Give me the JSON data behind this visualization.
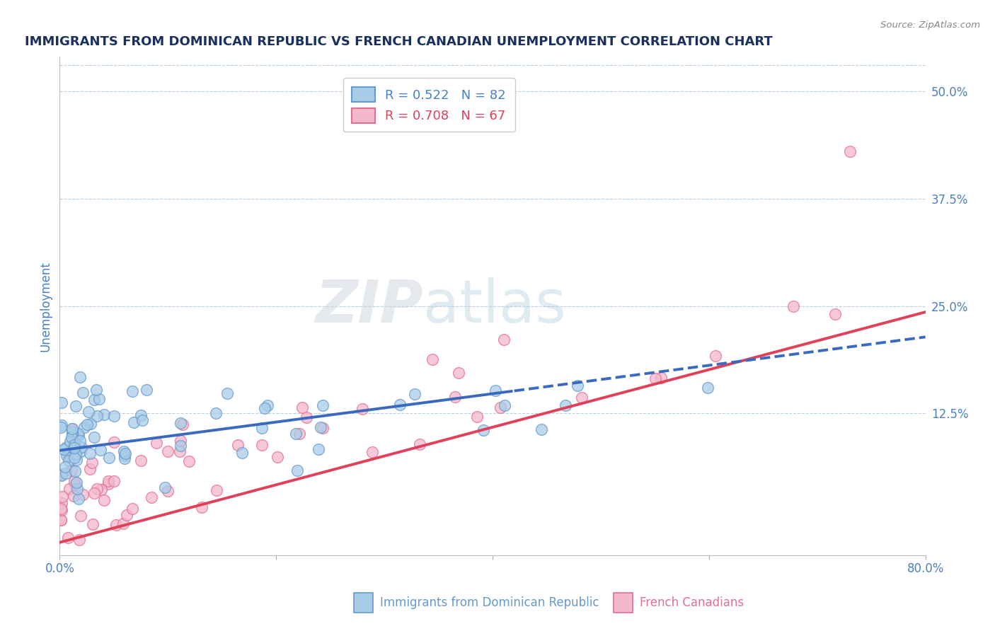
{
  "title": "IMMIGRANTS FROM DOMINICAN REPUBLIC VS FRENCH CANADIAN UNEMPLOYMENT CORRELATION CHART",
  "source": "Source: ZipAtlas.com",
  "ylabel": "Unemployment",
  "yticks": [
    0.0,
    0.125,
    0.25,
    0.375,
    0.5
  ],
  "ytick_labels": [
    "",
    "12.5%",
    "25.0%",
    "37.5%",
    "50.0%"
  ],
  "xmin": 0.0,
  "xmax": 0.8,
  "ymin": -0.04,
  "ymax": 0.54,
  "series1_color": "#a8cce8",
  "series2_color": "#f4b8cc",
  "series1_edge": "#6699cc",
  "series2_edge": "#e07090",
  "series1_label": "Immigrants from Dominican Republic",
  "series2_label": "French Canadians",
  "series1_R": "0.522",
  "series1_N": "82",
  "series2_R": "0.708",
  "series2_N": "67",
  "line1_color": "#3a6abf",
  "line2_color": "#e0405a",
  "line1_solid_end": 0.42,
  "watermark_text": "ZIPatlas",
  "title_color": "#1a3060",
  "axis_color": "#4a80c0",
  "legend_text_color1": "#4a80c0",
  "legend_text_color2": "#e0405a",
  "bottom_label_color1": "#6699cc",
  "bottom_label_color2": "#e07090"
}
